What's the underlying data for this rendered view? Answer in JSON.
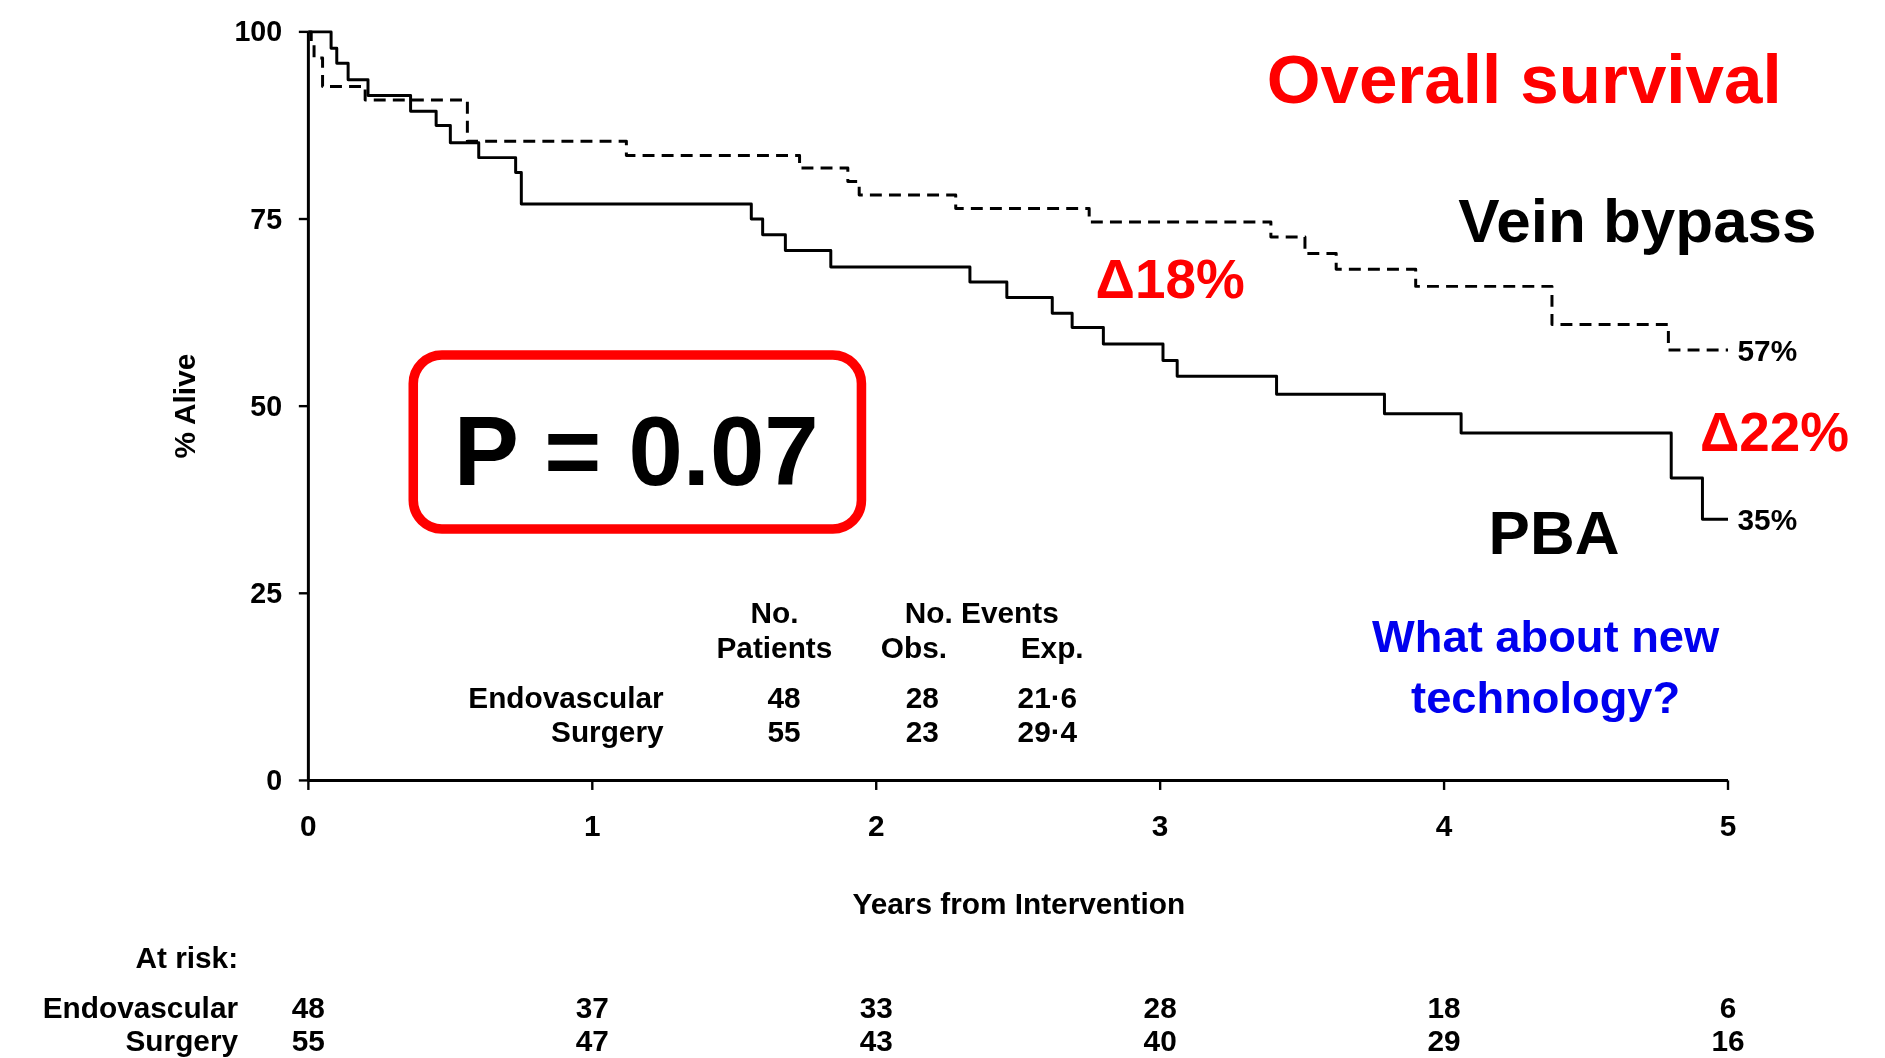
{
  "chart_data": {
    "type": "step",
    "title": "Overall survival",
    "xlabel": "Years from Intervention",
    "ylabel": "% Alive",
    "xlim": [
      0,
      5
    ],
    "xticks": [
      0,
      1,
      2,
      3,
      4,
      5
    ],
    "ylim": [
      0,
      100
    ],
    "yticks": [
      0,
      25,
      50,
      75,
      100
    ],
    "series": [
      {
        "name": "Vein bypass",
        "color": "#000000",
        "line_style": "dashed",
        "x": [
          0,
          0.01,
          0.02,
          0.05,
          0.2,
          0.56,
          1.12,
          1.73,
          1.9,
          1.94,
          2.28,
          2.75,
          3.39,
          3.51,
          3.62,
          3.9,
          4.38,
          4.79,
          5
        ],
        "values": [
          100,
          98.3,
          96.5,
          92.7,
          90.9,
          85.4,
          83.5,
          81.8,
          80,
          78.2,
          76.4,
          74.6,
          72.6,
          70.4,
          68.3,
          66,
          60.9,
          57.5,
          57.5
        ]
      },
      {
        "name": "PBA",
        "color": "#000000",
        "line_style": "solid",
        "x": [
          0,
          0.08,
          0.1,
          0.14,
          0.21,
          0.36,
          0.45,
          0.5,
          0.6,
          0.73,
          0.75,
          1.56,
          1.6,
          1.68,
          1.84,
          2.33,
          2.46,
          2.62,
          2.69,
          2.8,
          3.01,
          3.06,
          3.41,
          3.79,
          4.06,
          4.8,
          4.91,
          5
        ],
        "values": [
          100,
          97.8,
          95.8,
          93.6,
          91.5,
          89.4,
          87.5,
          85.2,
          83.2,
          81.2,
          77,
          75,
          72.9,
          70.8,
          68.6,
          66.6,
          64.5,
          62.4,
          60.5,
          58.3,
          56.1,
          54,
          51.6,
          49,
          46.4,
          40.4,
          34.9,
          34.9
        ]
      }
    ],
    "annotations": [
      {
        "text": "57%",
        "x": 5,
        "y": 57.5
      },
      {
        "text": "35%",
        "x": 5,
        "y": 34.9
      },
      "Δ18%",
      "Δ22%",
      "P = 0.07",
      "What about new technology?",
      "No.",
      "Patients",
      "No. Events",
      "Obs.",
      "Exp.",
      "Endovascular",
      "48",
      "28",
      "21·6",
      "Surgery",
      "55",
      "23",
      "29·4",
      "At risk:",
      "Endovascular",
      "48",
      "37",
      "33",
      "28",
      "18",
      "6",
      "Surgery",
      "55",
      "47",
      "43",
      "40",
      "29",
      "16"
    ]
  }
}
